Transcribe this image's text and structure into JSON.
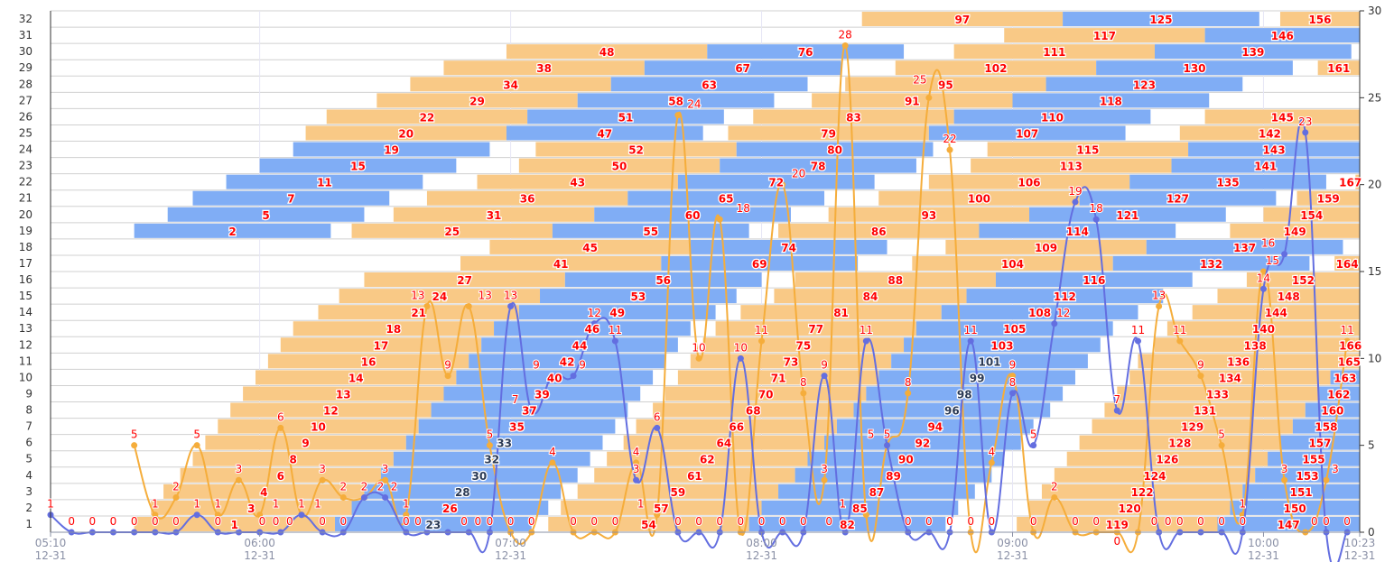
{
  "chart_data": {
    "type": "bar",
    "subtype": "gantt-with-lines",
    "x_axis": {
      "min": "05:10",
      "max": "10:23",
      "ticks": [
        {
          "time": "05:10",
          "date": "12-31"
        },
        {
          "time": "06:00",
          "date": "12-31"
        },
        {
          "time": "07:00",
          "date": "12-31"
        },
        {
          "time": "08:00",
          "date": "12-31"
        },
        {
          "time": "09:00",
          "date": "12-31"
        },
        {
          "time": "10:00",
          "date": "12-31"
        },
        {
          "time": "10:23",
          "date": "12-31"
        }
      ]
    },
    "y_left": {
      "categories": [
        "1",
        "2",
        "3",
        "4",
        "5",
        "6",
        "7",
        "8",
        "9",
        "10",
        "11",
        "12",
        "13",
        "14",
        "15",
        "16",
        "17",
        "18",
        "19",
        "20",
        "21",
        "22",
        "23",
        "24",
        "25",
        "26",
        "27",
        "28",
        "29",
        "30",
        "31",
        "32"
      ]
    },
    "y_right": {
      "min": 0,
      "max": 30,
      "ticks": [
        "0",
        "5",
        "10",
        "15",
        "20",
        "25",
        "30"
      ]
    },
    "grid": {
      "horizontal": true,
      "vertical": true
    },
    "colors": {
      "bar_orange": "#f9c986",
      "bar_blue": "#80adf5",
      "line_orange": "#f5ad3b",
      "line_blue": "#636ee0",
      "label_red": "#ff0000",
      "label_dark": "#2b3a55"
    },
    "bar_fields": [
      "id",
      "row",
      "type",
      "start",
      "end"
    ],
    "dark_labels": [
      23,
      28,
      30,
      32,
      33,
      96,
      98,
      99,
      101
    ],
    "bars": [
      [
        97,
        32,
        "o",
        "08:24",
        "09:12"
      ],
      [
        125,
        32,
        "b",
        "09:12",
        "09:59"
      ],
      [
        156,
        32,
        "o",
        "10:04",
        null
      ],
      [
        117,
        31,
        "o",
        "08:58",
        "09:46"
      ],
      [
        146,
        31,
        "b",
        "09:46",
        null
      ],
      [
        48,
        30,
        "o",
        "06:59",
        "07:47"
      ],
      [
        76,
        30,
        "b",
        "07:47",
        "08:34"
      ],
      [
        111,
        30,
        "o",
        "08:46",
        "09:34"
      ],
      [
        139,
        30,
        "b",
        "09:34",
        "10:21"
      ],
      [
        38,
        29,
        "o",
        "06:44",
        "07:32"
      ],
      [
        67,
        29,
        "b",
        "07:32",
        "08:19"
      ],
      [
        102,
        29,
        "o",
        "08:32",
        "09:20"
      ],
      [
        130,
        29,
        "b",
        "09:20",
        "10:07"
      ],
      [
        161,
        29,
        "o",
        "10:13",
        null
      ],
      [
        34,
        28,
        "o",
        "06:36",
        "07:24"
      ],
      [
        63,
        28,
        "b",
        "07:24",
        "08:11"
      ],
      [
        95,
        28,
        "o",
        "08:20",
        "09:08"
      ],
      [
        123,
        28,
        "b",
        "09:08",
        "09:55"
      ],
      [
        29,
        27,
        "o",
        "06:28",
        "07:16"
      ],
      [
        58,
        27,
        "b",
        "07:16",
        "08:03"
      ],
      [
        91,
        27,
        "o",
        "08:12",
        "09:00"
      ],
      [
        118,
        27,
        "b",
        "09:00",
        "09:47"
      ],
      [
        22,
        26,
        "o",
        "06:16",
        "07:04"
      ],
      [
        51,
        26,
        "b",
        "07:04",
        "07:51"
      ],
      [
        83,
        26,
        "o",
        "07:58",
        "08:46"
      ],
      [
        110,
        26,
        "b",
        "08:46",
        "09:33"
      ],
      [
        145,
        26,
        "o",
        "09:46",
        null
      ],
      [
        20,
        25,
        "o",
        "06:11",
        "06:59"
      ],
      [
        47,
        25,
        "b",
        "06:59",
        "07:46"
      ],
      [
        79,
        25,
        "o",
        "07:52",
        "08:40"
      ],
      [
        107,
        25,
        "b",
        "08:40",
        "09:27"
      ],
      [
        142,
        25,
        "o",
        "09:40",
        null
      ],
      [
        19,
        24,
        "b",
        "06:08",
        "06:55"
      ],
      [
        52,
        24,
        "o",
        "07:06",
        "07:54"
      ],
      [
        80,
        24,
        "b",
        "07:54",
        "08:41"
      ],
      [
        115,
        24,
        "o",
        "08:54",
        "09:42"
      ],
      [
        143,
        24,
        "b",
        "09:42",
        null
      ],
      [
        15,
        23,
        "b",
        "06:00",
        "06:47"
      ],
      [
        50,
        23,
        "o",
        "07:02",
        "07:50"
      ],
      [
        78,
        23,
        "b",
        "07:50",
        "08:37"
      ],
      [
        113,
        23,
        "o",
        "08:50",
        "09:38"
      ],
      [
        141,
        23,
        "b",
        "09:38",
        null
      ],
      [
        11,
        22,
        "b",
        "05:52",
        "06:39"
      ],
      [
        43,
        22,
        "o",
        "06:52",
        "07:40"
      ],
      [
        72,
        22,
        "b",
        "07:40",
        "08:27"
      ],
      [
        106,
        22,
        "o",
        "08:40",
        "09:28"
      ],
      [
        135,
        22,
        "b",
        "09:28",
        "10:15"
      ],
      [
        167,
        22,
        "o",
        "10:22",
        null
      ],
      [
        7,
        21,
        "b",
        "05:44",
        "06:31"
      ],
      [
        36,
        21,
        "o",
        "06:40",
        "07:28"
      ],
      [
        65,
        21,
        "b",
        "07:28",
        "08:15"
      ],
      [
        100,
        21,
        "o",
        "08:28",
        "09:16"
      ],
      [
        127,
        21,
        "b",
        "09:16",
        "10:03"
      ],
      [
        159,
        21,
        "o",
        "10:08",
        null
      ],
      [
        5,
        20,
        "b",
        "05:38",
        "06:25"
      ],
      [
        31,
        20,
        "o",
        "06:32",
        "07:20"
      ],
      [
        60,
        20,
        "b",
        "07:20",
        "08:07"
      ],
      [
        93,
        20,
        "o",
        "08:16",
        "09:04"
      ],
      [
        121,
        20,
        "b",
        "09:04",
        "09:51"
      ],
      [
        154,
        20,
        "o",
        "10:00",
        null
      ],
      [
        2,
        19,
        "b",
        "05:30",
        "06:17"
      ],
      [
        25,
        19,
        "o",
        "06:22",
        "07:10"
      ],
      [
        55,
        19,
        "b",
        "07:10",
        "07:57"
      ],
      [
        86,
        19,
        "o",
        "08:04",
        "08:52"
      ],
      [
        114,
        19,
        "b",
        "08:52",
        "09:39"
      ],
      [
        149,
        19,
        "o",
        "09:52",
        null
      ],
      [
        45,
        18,
        "o",
        "06:55",
        "07:43"
      ],
      [
        74,
        18,
        "b",
        "07:43",
        "08:30"
      ],
      [
        109,
        18,
        "o",
        "08:44",
        "09:32"
      ],
      [
        137,
        18,
        "b",
        "09:32",
        "10:19"
      ],
      [
        41,
        17,
        "o",
        "06:48",
        "07:36"
      ],
      [
        69,
        17,
        "b",
        "07:36",
        "08:23"
      ],
      [
        104,
        17,
        "o",
        "08:36",
        "09:24"
      ],
      [
        132,
        17,
        "b",
        "09:24",
        "10:11"
      ],
      [
        164,
        17,
        "o",
        "10:17",
        null
      ],
      [
        27,
        16,
        "o",
        "06:25",
        "07:13"
      ],
      [
        56,
        16,
        "b",
        "07:13",
        "08:00"
      ],
      [
        88,
        16,
        "o",
        "08:08",
        "08:56"
      ],
      [
        116,
        16,
        "b",
        "08:56",
        "09:43"
      ],
      [
        152,
        16,
        "o",
        "09:56",
        null
      ],
      [
        24,
        15,
        "o",
        "06:19",
        "07:07"
      ],
      [
        53,
        15,
        "b",
        "07:07",
        "07:54"
      ],
      [
        84,
        15,
        "o",
        "08:03",
        "08:49"
      ],
      [
        112,
        15,
        "b",
        "08:49",
        "09:36"
      ],
      [
        148,
        15,
        "o",
        "09:49",
        null
      ],
      [
        21,
        14,
        "o",
        "06:14",
        "07:02"
      ],
      [
        49,
        14,
        "b",
        "07:02",
        "07:49"
      ],
      [
        81,
        14,
        "o",
        "07:55",
        "08:43"
      ],
      [
        108,
        14,
        "b",
        "08:43",
        "09:30"
      ],
      [
        144,
        14,
        "o",
        "09:43",
        null
      ],
      [
        18,
        13,
        "o",
        "06:08",
        "06:56"
      ],
      [
        46,
        13,
        "b",
        "06:56",
        "07:43"
      ],
      [
        77,
        13,
        "o",
        "07:49",
        "08:37"
      ],
      [
        105,
        13,
        "b",
        "08:37",
        "09:24"
      ],
      [
        140,
        13,
        "o",
        "09:37",
        null
      ],
      [
        17,
        12,
        "o",
        "06:05",
        "06:53"
      ],
      [
        44,
        12,
        "b",
        "06:53",
        "07:40"
      ],
      [
        75,
        12,
        "o",
        "07:46",
        "08:34"
      ],
      [
        103,
        12,
        "b",
        "08:34",
        "09:21"
      ],
      [
        138,
        12,
        "o",
        "09:34",
        "10:22"
      ],
      [
        166,
        12,
        "o",
        "10:22",
        null
      ],
      [
        16,
        11,
        "o",
        "06:02",
        "06:50"
      ],
      [
        42,
        11,
        "b",
        "06:50",
        "07:37"
      ],
      [
        73,
        11,
        "o",
        "07:43",
        "08:31"
      ],
      [
        101,
        11,
        "b",
        "08:31",
        "09:18"
      ],
      [
        136,
        11,
        "o",
        "09:30",
        "10:18"
      ],
      [
        165,
        11,
        "o",
        "10:18",
        null
      ],
      [
        14,
        10,
        "o",
        "05:59",
        "06:47"
      ],
      [
        40,
        10,
        "b",
        "06:47",
        "07:34"
      ],
      [
        71,
        10,
        "o",
        "07:40",
        "08:28"
      ],
      [
        99,
        10,
        "b",
        "08:28",
        "09:15"
      ],
      [
        134,
        10,
        "o",
        "09:28",
        "10:16"
      ],
      [
        163,
        10,
        "b",
        "10:16",
        null
      ],
      [
        13,
        9,
        "o",
        "05:56",
        "06:44"
      ],
      [
        39,
        9,
        "b",
        "06:44",
        "07:31"
      ],
      [
        70,
        9,
        "o",
        "07:37",
        "08:25"
      ],
      [
        98,
        9,
        "b",
        "08:25",
        "09:12"
      ],
      [
        133,
        9,
        "o",
        "09:25",
        "10:13"
      ],
      [
        162,
        9,
        "b",
        "10:13",
        null
      ],
      [
        12,
        8,
        "o",
        "05:53",
        "06:41"
      ],
      [
        37,
        8,
        "b",
        "06:41",
        "07:28"
      ],
      [
        68,
        8,
        "o",
        "07:34",
        "08:22"
      ],
      [
        96,
        8,
        "b",
        "08:22",
        "09:09"
      ],
      [
        131,
        8,
        "o",
        "09:22",
        "10:10"
      ],
      [
        160,
        8,
        "b",
        "10:10",
        null
      ],
      [
        10,
        7,
        "o",
        "05:50",
        "06:38"
      ],
      [
        35,
        7,
        "b",
        "06:38",
        "07:25"
      ],
      [
        66,
        7,
        "o",
        "07:30",
        "08:18"
      ],
      [
        94,
        7,
        "b",
        "08:18",
        "09:05"
      ],
      [
        129,
        7,
        "o",
        "09:19",
        "10:07"
      ],
      [
        158,
        7,
        "b",
        "10:07",
        null
      ],
      [
        9,
        6,
        "o",
        "05:47",
        "06:35"
      ],
      [
        33,
        6,
        "b",
        "06:35",
        "07:22"
      ],
      [
        64,
        6,
        "o",
        "07:27",
        "08:15"
      ],
      [
        92,
        6,
        "b",
        "08:15",
        "09:02"
      ],
      [
        128,
        6,
        "o",
        "09:16",
        "10:04"
      ],
      [
        157,
        6,
        "b",
        "10:04",
        null
      ],
      [
        8,
        5,
        "o",
        "05:44",
        "06:32"
      ],
      [
        32,
        5,
        "b",
        "06:32",
        "07:19"
      ],
      [
        62,
        5,
        "o",
        "07:23",
        "08:11"
      ],
      [
        90,
        5,
        "b",
        "08:11",
        "08:58"
      ],
      [
        126,
        5,
        "o",
        "09:13",
        "10:01"
      ],
      [
        155,
        5,
        "b",
        "10:01",
        null
      ],
      [
        6,
        4,
        "o",
        "05:41",
        "06:29"
      ],
      [
        30,
        4,
        "b",
        "06:29",
        "07:16"
      ],
      [
        61,
        4,
        "o",
        "07:20",
        "08:08"
      ],
      [
        89,
        4,
        "b",
        "08:08",
        "08:55"
      ],
      [
        124,
        4,
        "o",
        "09:10",
        "09:58"
      ],
      [
        153,
        4,
        "b",
        "09:58",
        null
      ],
      [
        4,
        3,
        "o",
        "05:37",
        "06:25"
      ],
      [
        28,
        3,
        "b",
        "06:25",
        "07:12"
      ],
      [
        59,
        3,
        "o",
        "07:16",
        "08:04"
      ],
      [
        87,
        3,
        "b",
        "08:04",
        "08:51"
      ],
      [
        122,
        3,
        "o",
        "09:07",
        "09:55"
      ],
      [
        151,
        3,
        "b",
        "09:55",
        null
      ],
      [
        3,
        2,
        "o",
        "05:34",
        "06:22"
      ],
      [
        26,
        2,
        "b",
        "06:22",
        "07:09"
      ],
      [
        57,
        2,
        "o",
        "07:12",
        "08:00"
      ],
      [
        85,
        2,
        "b",
        "08:00",
        "08:47"
      ],
      [
        120,
        2,
        "o",
        "09:04",
        "09:52"
      ],
      [
        150,
        2,
        "b",
        "09:52",
        null
      ],
      [
        1,
        1,
        "o",
        "05:30",
        "06:18"
      ],
      [
        23,
        1,
        "b",
        "06:18",
        "07:05"
      ],
      [
        54,
        1,
        "o",
        "07:09",
        "07:57"
      ],
      [
        82,
        1,
        "b",
        "07:57",
        "08:44"
      ],
      [
        119,
        1,
        "o",
        "09:01",
        "09:49"
      ],
      [
        147,
        1,
        "b",
        "09:49",
        null
      ]
    ],
    "line_x": [
      "05:10",
      "05:15",
      "05:20",
      "05:25",
      "05:30",
      "05:35",
      "05:40",
      "05:45",
      "05:50",
      "05:55",
      "06:00",
      "06:05",
      "06:10",
      "06:15",
      "06:20",
      "06:25",
      "06:30",
      "06:35",
      "06:40",
      "06:45",
      "06:50",
      "06:55",
      "07:00",
      "07:05",
      "07:10",
      "07:15",
      "07:20",
      "07:25",
      "07:30",
      "07:35",
      "07:40",
      "07:45",
      "07:50",
      "07:55",
      "08:00",
      "08:05",
      "08:10",
      "08:15",
      "08:20",
      "08:25",
      "08:30",
      "08:35",
      "08:40",
      "08:45",
      "08:50",
      "08:55",
      "09:00",
      "09:05",
      "09:10",
      "09:15",
      "09:20",
      "09:25",
      "09:30",
      "09:35",
      "09:40",
      "09:45",
      "09:50",
      "09:55",
      "10:00",
      "10:05",
      "10:10",
      "10:15",
      "10:20"
    ],
    "series": [
      {
        "color_key": "line_orange",
        "values": [
          null,
          null,
          null,
          null,
          5,
          1,
          2,
          5,
          1,
          3,
          1,
          6,
          1,
          3,
          2,
          2,
          3,
          1,
          13,
          9,
          13,
          5,
          0,
          0,
          4,
          0,
          0,
          0,
          4,
          1,
          24,
          10,
          18,
          0,
          11,
          20,
          8,
          3,
          28,
          1,
          5,
          8,
          25,
          22,
          0,
          4,
          9,
          0,
          2,
          0,
          0,
          0,
          0,
          13,
          11,
          9,
          5,
          1,
          15,
          3,
          0,
          3,
          11
        ]
      },
      {
        "color_key": "line_blue",
        "values": [
          1,
          0,
          0,
          0,
          0,
          0,
          0,
          1,
          0,
          0,
          0,
          0,
          1,
          0,
          0,
          2,
          2,
          0,
          0,
          0,
          0,
          0,
          13,
          7,
          9,
          9,
          12,
          11,
          3,
          6,
          0,
          0,
          0,
          10,
          0,
          0,
          0,
          9,
          0,
          11,
          5,
          0,
          0,
          0,
          11,
          0,
          8,
          5,
          12,
          19,
          18,
          7,
          11,
          0,
          0,
          0,
          0,
          0,
          14,
          16,
          23,
          0,
          0
        ]
      }
    ]
  }
}
